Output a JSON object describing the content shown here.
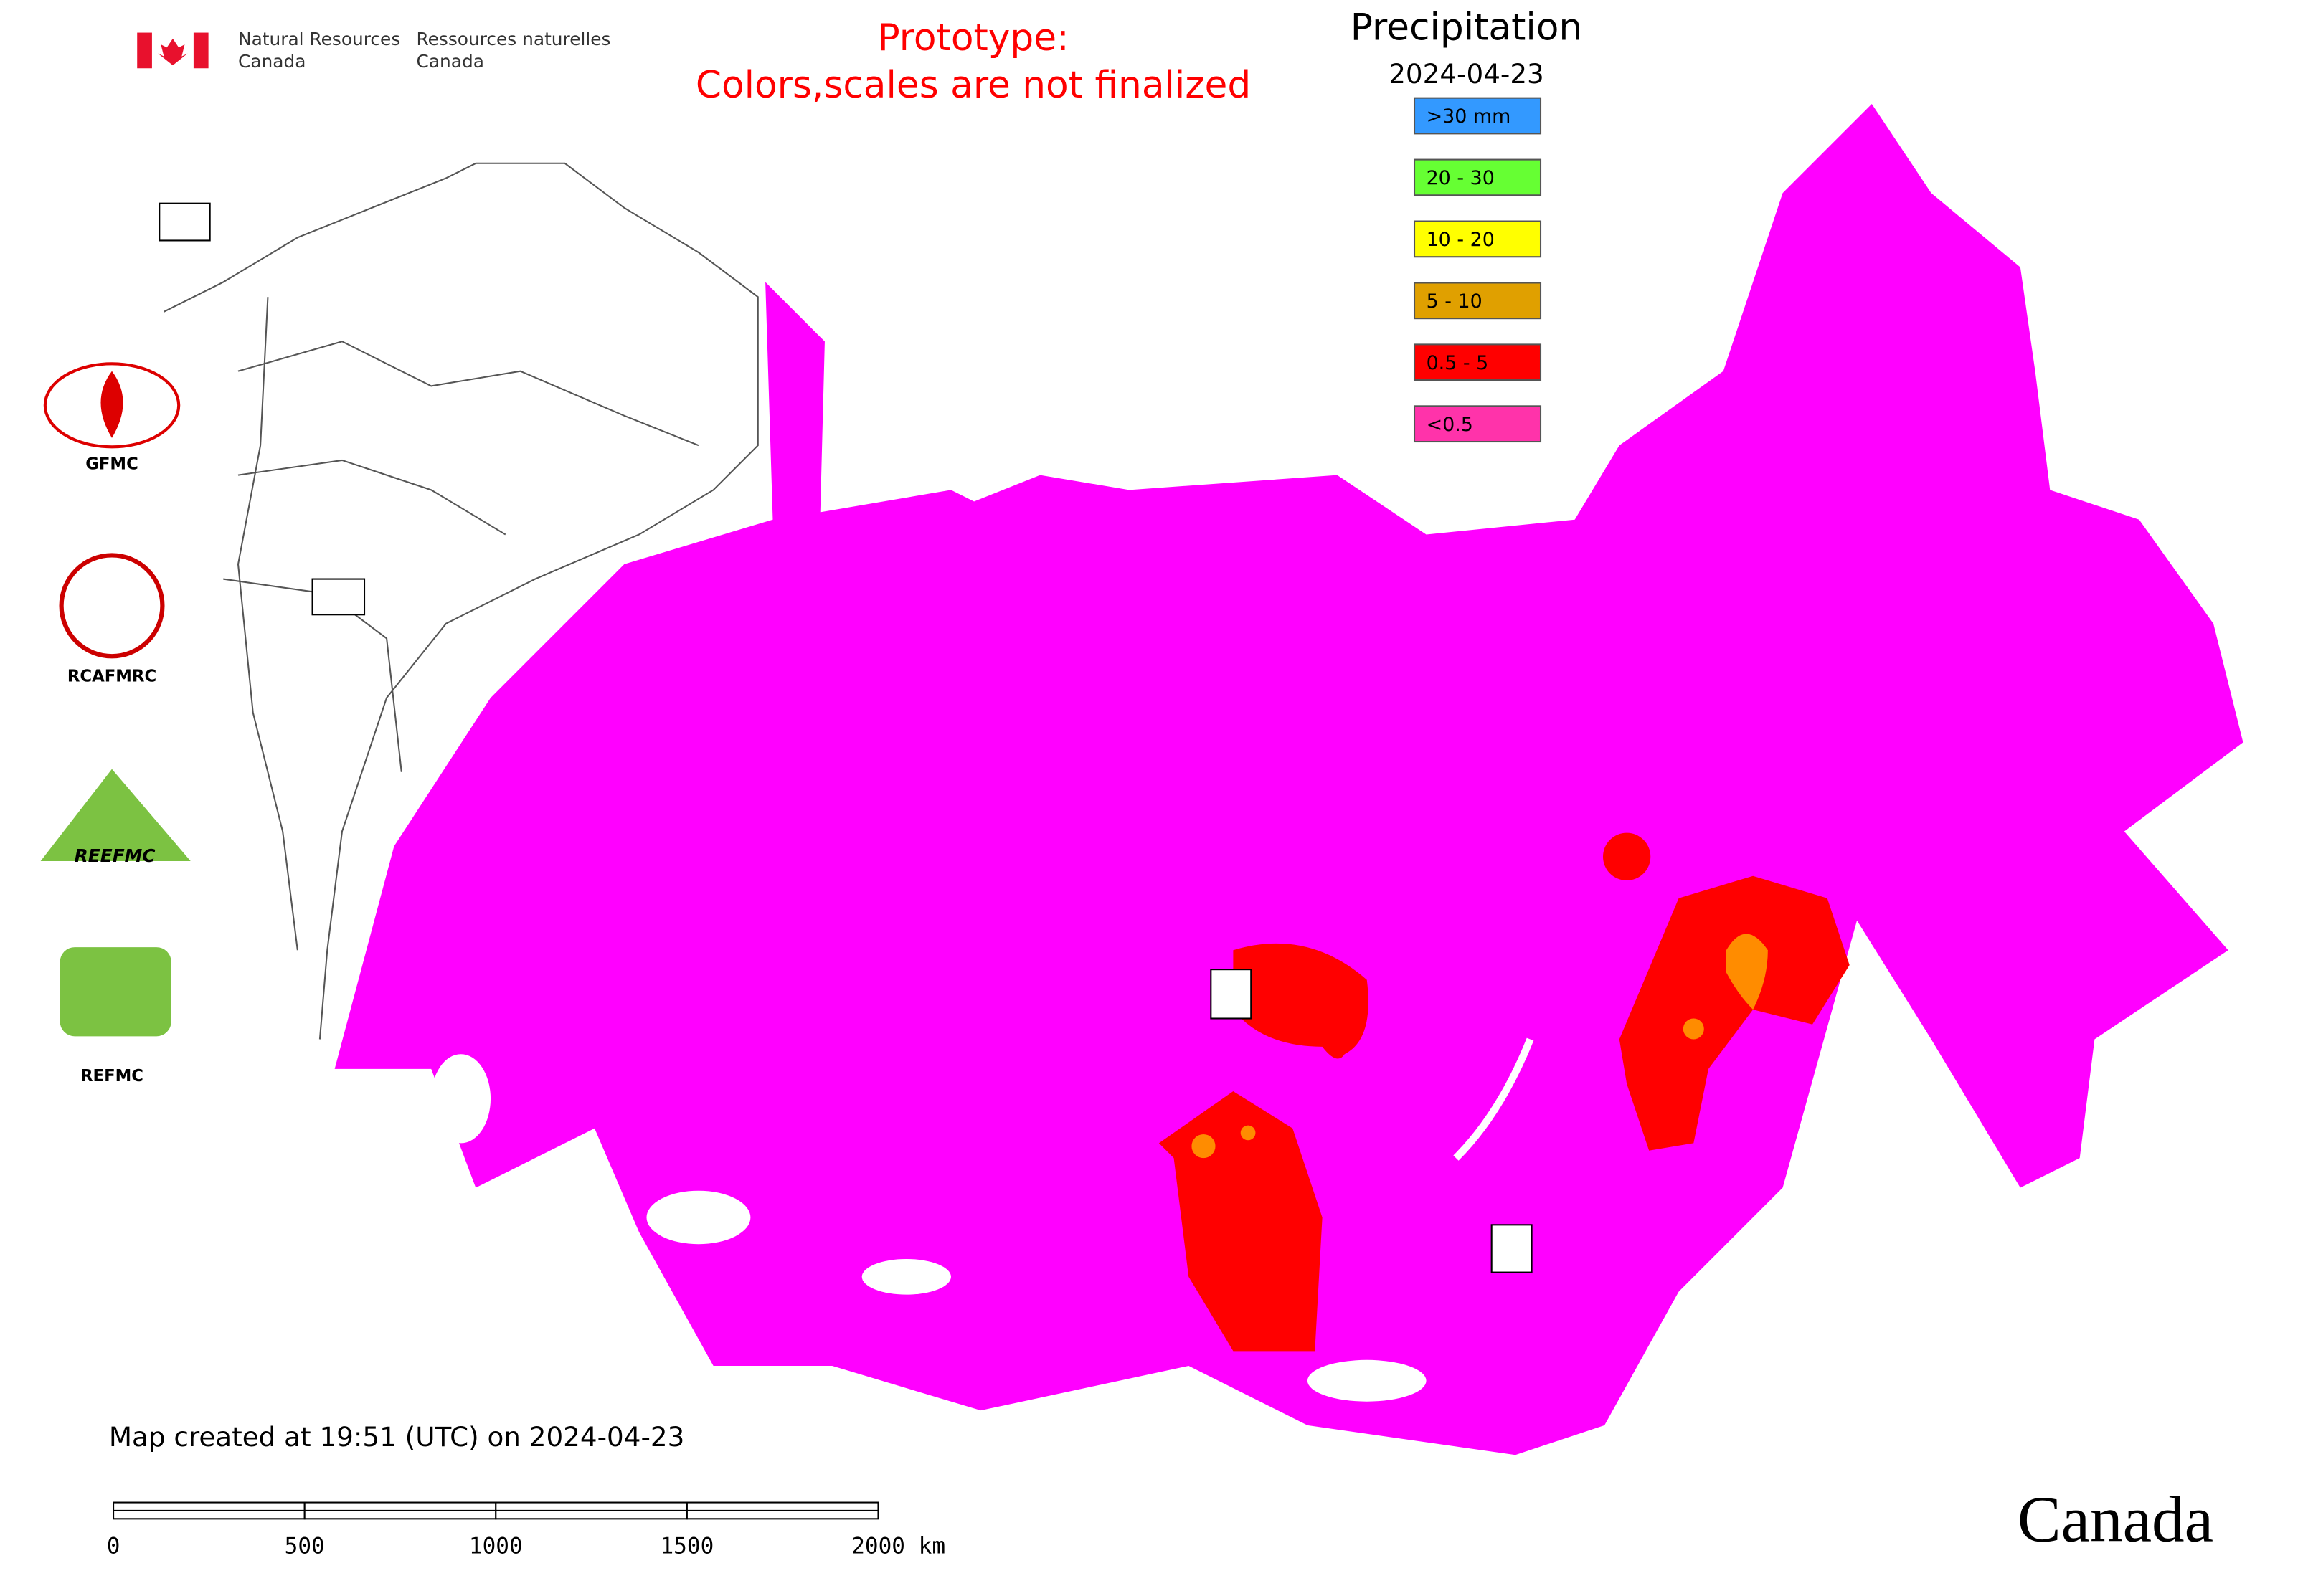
{
  "header": {
    "department_en": [
      "Natural Resources",
      "Canada"
    ],
    "department_fr": [
      "Ressources naturelles",
      "Canada"
    ],
    "prototype": [
      "Prototype:",
      "Colors,scales are not finalized"
    ]
  },
  "legend": {
    "title": "Precipitation",
    "date": "2024-04-23",
    "items": [
      {
        "label": ">30 mm",
        "color": "#3399ff"
      },
      {
        "label": "20 - 30",
        "color": "#66ff33"
      },
      {
        "label": "10 - 20",
        "color": "#ffff00"
      },
      {
        "label": "5 - 10",
        "color": "#e0a000"
      },
      {
        "label": "0.5 - 5",
        "color": "#ff0000"
      },
      {
        "label": "<0.5",
        "color": "#ff33aa"
      }
    ]
  },
  "logos": [
    "GFMC",
    "RCAFMRC",
    "REEFMC",
    "REFMC"
  ],
  "footer": {
    "created": "Map created at 19:51 (UTC) on 2024-04-23",
    "scale_labels": [
      "0",
      "500",
      "1000",
      "1500",
      "2000 km"
    ],
    "wordmark": "Canada"
  }
}
